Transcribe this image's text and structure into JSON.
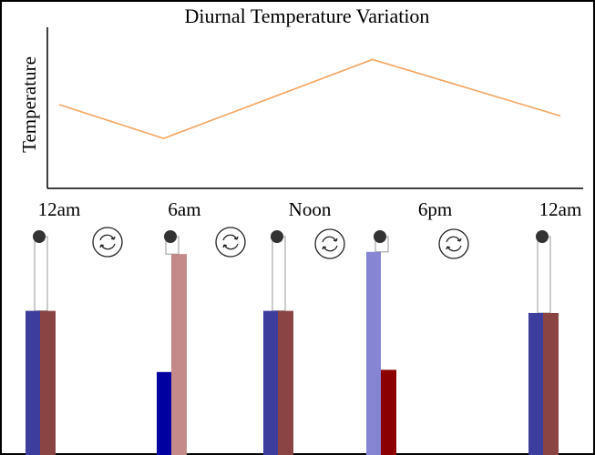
{
  "chart_data": {
    "type": "line",
    "title": "Diurnal Temperature Variation",
    "y_label": "Temperature",
    "x": [
      0,
      5,
      15,
      24
    ],
    "values": [
      52,
      31,
      80,
      45
    ],
    "color": "#f4a460",
    "xlim": [
      0,
      24
    ],
    "ylim": [
      0,
      100
    ],
    "xticks": [
      {
        "value": 0,
        "label": "12am"
      },
      {
        "value": 6,
        "label": "6am"
      },
      {
        "value": 12,
        "label": "Noon"
      },
      {
        "value": 18,
        "label": "6pm"
      },
      {
        "value": 24,
        "label": "12am"
      }
    ]
  },
  "gauges": [
    {
      "blue": 66,
      "red": 66,
      "blue_color": "#3d3d9e",
      "red_color": "#8a4444"
    },
    {
      "blue": 38,
      "red": 92,
      "blue_color": "#0000a0",
      "red_color": "#c48a8a"
    },
    {
      "blue": 66,
      "red": 66,
      "blue_color": "#3d3d9e",
      "red_color": "#8a4444"
    },
    {
      "blue": 93,
      "red": 39,
      "blue_color": "#8585d4",
      "red_color": "#8b0000"
    },
    {
      "blue": 65,
      "red": 65,
      "blue_color": "#3d3d9e",
      "red_color": "#8a4444"
    }
  ]
}
